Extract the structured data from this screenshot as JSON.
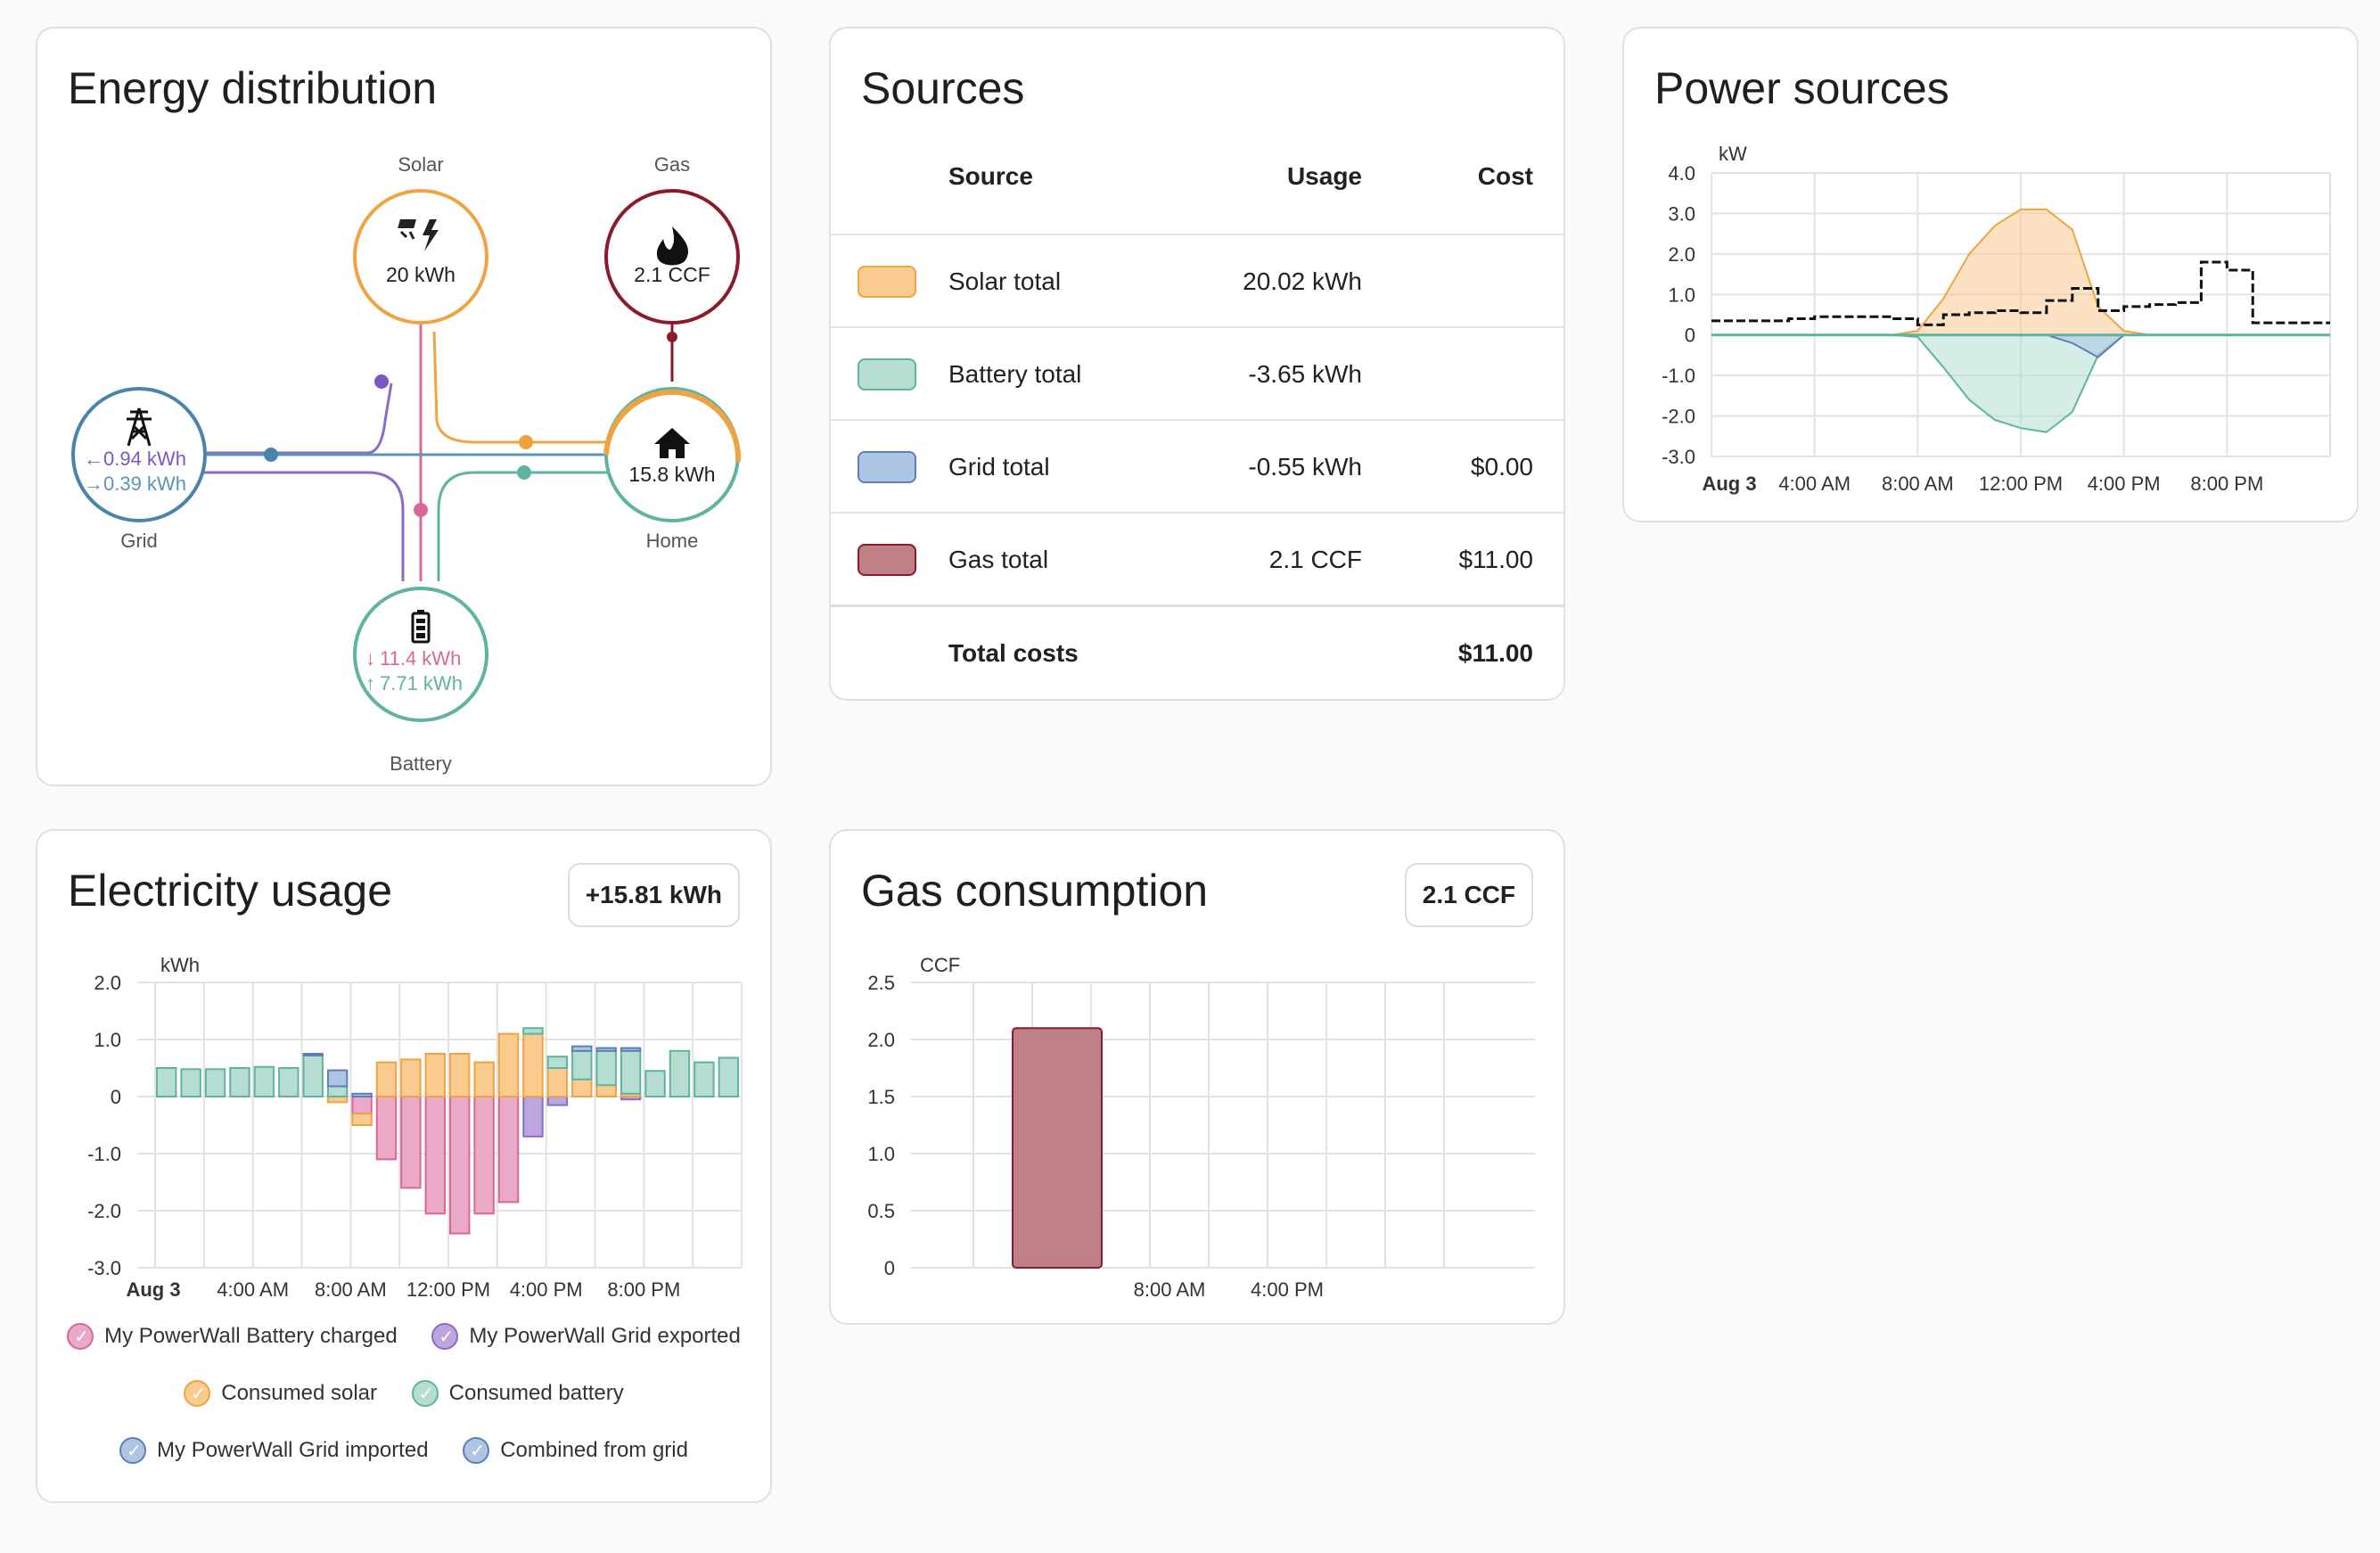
{
  "distribution": {
    "title": "Energy distribution",
    "solar": {
      "label": "Solar",
      "value": "20 kWh"
    },
    "gas": {
      "label": "Gas",
      "value": "2.1 CCF"
    },
    "grid": {
      "label": "Grid",
      "in": "0.94 kWh",
      "out": "0.39 kWh"
    },
    "home": {
      "label": "Home",
      "value": "15.8 kWh"
    },
    "battery": {
      "label": "Battery",
      "in": "11.4 kWh",
      "out": "7.71 kWh"
    }
  },
  "sources": {
    "title": "Sources",
    "headers": {
      "source": "Source",
      "usage": "Usage",
      "cost": "Cost"
    },
    "rows": [
      {
        "name": "Solar total",
        "usage": "20.02 kWh",
        "cost": "",
        "color": "#f9cb8f"
      },
      {
        "name": "Battery total",
        "usage": "-3.65 kWh",
        "cost": "",
        "color": "#b5ddd2"
      },
      {
        "name": "Grid total",
        "usage": "-0.55 kWh",
        "cost": "$0.00",
        "color": "#aec5e3"
      },
      {
        "name": "Gas total",
        "usage": "2.1 CCF",
        "cost": "$11.00",
        "color": "#bf8185"
      }
    ],
    "total_label": "Total costs",
    "total_value": "$11.00"
  },
  "power_sources": {
    "title": "Power sources"
  },
  "electricity": {
    "title": "Electricity usage",
    "badge": "+15.81 kWh",
    "legend": [
      {
        "label": "My PowerWall Battery charged",
        "color": "#eaa9c6"
      },
      {
        "label": "My PowerWall Grid exported",
        "color": "#bfa5de"
      },
      {
        "label": "Consumed solar",
        "color": "#f9cb8f"
      },
      {
        "label": "Consumed battery",
        "color": "#b5ddd2"
      },
      {
        "label": "My PowerWall Grid imported",
        "color": "#aec5e3"
      },
      {
        "label": "Combined from grid",
        "color": "#aec5e3"
      }
    ]
  },
  "gas": {
    "title": "Gas consumption",
    "badge": "2.1 CCF"
  },
  "chart_data": [
    {
      "type": "area",
      "unit": "kW",
      "ylim": [
        -3.0,
        4.0
      ],
      "yticks": [
        "4.0",
        "3.0",
        "2.0",
        "1.0",
        "0",
        "-1.0",
        "-2.0",
        "-3.0"
      ],
      "xticks": [
        "Aug 3",
        "4:00 AM",
        "8:00 AM",
        "12:00 PM",
        "4:00 PM",
        "8:00 PM"
      ],
      "x_hours": [
        0,
        1,
        2,
        3,
        4,
        5,
        6,
        7,
        8,
        9,
        10,
        11,
        12,
        13,
        14,
        15,
        16,
        17,
        18,
        19,
        20,
        21,
        22,
        23,
        24
      ],
      "series": [
        {
          "values": [
            0,
            0,
            0,
            0,
            0,
            0,
            0,
            0,
            0.1,
            0.9,
            2.0,
            2.7,
            3.1,
            3.1,
            2.6,
            0.7,
            0.1,
            0,
            0,
            0,
            0,
            0,
            0,
            0,
            0
          ]
        },
        {
          "values": [
            0,
            0,
            0,
            0,
            0,
            0,
            0,
            0,
            -0.05,
            -0.8,
            -1.6,
            -2.1,
            -2.3,
            -2.4,
            -1.9,
            -0.5,
            0,
            0,
            0,
            0,
            0,
            0,
            0,
            0,
            0
          ]
        },
        {
          "values": [
            0.35,
            0.35,
            0.35,
            0.4,
            0.45,
            0.45,
            0.45,
            0.4,
            0.25,
            0.5,
            0.55,
            0.6,
            0.55,
            0.85,
            1.15,
            0.6,
            0.7,
            0.75,
            0.8,
            1.8,
            1.6,
            0.3,
            0.3,
            0.3,
            0.3
          ]
        },
        {
          "values": [
            0,
            0,
            0,
            0,
            0,
            0,
            0,
            0,
            0,
            0,
            0,
            0,
            0,
            0,
            -0.2,
            -0.55,
            0,
            0,
            0,
            0,
            0,
            0,
            0,
            0,
            0
          ]
        }
      ]
    },
    {
      "type": "bar",
      "unit": "kWh",
      "ylim": [
        -3.0,
        2.0
      ],
      "yticks": [
        "2.0",
        "1.0",
        "0",
        "-1.0",
        "-2.0",
        "-3.0"
      ],
      "xticks": [
        "Aug 3",
        "4:00 AM",
        "8:00 AM",
        "12:00 PM",
        "4:00 PM",
        "8:00 PM"
      ],
      "hours": [
        1,
        2,
        3,
        4,
        5,
        6,
        7,
        8,
        9,
        10,
        11,
        12,
        13,
        14,
        15,
        16,
        17,
        18,
        19,
        20,
        21,
        22,
        23,
        24
      ],
      "series": [
        {
          "name": "My PowerWall Battery charged",
          "values": [
            0,
            0,
            0,
            0,
            0,
            0,
            0,
            0,
            -0.3,
            -1.1,
            -1.6,
            -2.05,
            -2.4,
            -2.05,
            -1.85,
            0,
            0,
            0,
            0,
            0,
            0,
            0,
            0,
            0
          ]
        },
        {
          "name": "My PowerWall Grid exported",
          "values": [
            0,
            0,
            0,
            0,
            0,
            0,
            0,
            0,
            0,
            0,
            0,
            0,
            0,
            0,
            0,
            -0.7,
            -0.15,
            0,
            0,
            -0.05,
            0,
            0,
            0,
            0
          ]
        },
        {
          "name": "Consumed solar",
          "values": [
            0,
            0,
            0,
            0,
            0,
            0,
            0,
            -0.1,
            -0.2,
            0.6,
            0.65,
            0.75,
            0.75,
            0.6,
            1.1,
            1.1,
            0.5,
            0.3,
            0.2,
            0.05,
            0,
            0,
            0,
            0
          ]
        },
        {
          "name": "Consumed battery",
          "values": [
            0.5,
            0.48,
            0.48,
            0.5,
            0.52,
            0.5,
            0.72,
            0.18,
            0,
            0,
            0,
            0,
            0,
            0,
            0,
            0.1,
            0.2,
            0.5,
            0.6,
            0.75,
            0.45,
            0.8,
            0.6,
            0.68
          ]
        },
        {
          "name": "My PowerWall Grid imported",
          "values": [
            0,
            0,
            0,
            0,
            0,
            0,
            0.03,
            0.28,
            0.05,
            0,
            0,
            0,
            0,
            0,
            0,
            0,
            0,
            0,
            0,
            0,
            0,
            0,
            0,
            0
          ]
        },
        {
          "name": "Combined from grid",
          "values": [
            0,
            0,
            0,
            0,
            0,
            0,
            0,
            0,
            0,
            0,
            0,
            0,
            0,
            0,
            0,
            0,
            0,
            0.08,
            0.05,
            0.05,
            0,
            0,
            0,
            0
          ]
        }
      ]
    },
    {
      "type": "bar",
      "unit": "CCF",
      "ylim": [
        0,
        2.5
      ],
      "yticks": [
        "2.5",
        "2.0",
        "1.5",
        "1.0",
        "0.5",
        "0"
      ],
      "xticks": [
        "8:00 AM",
        "4:00 PM"
      ],
      "series": [
        {
          "values": [
            2.1
          ]
        }
      ]
    }
  ]
}
